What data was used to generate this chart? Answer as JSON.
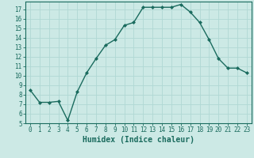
{
  "x": [
    0,
    1,
    2,
    3,
    4,
    5,
    6,
    7,
    8,
    9,
    10,
    11,
    12,
    13,
    14,
    15,
    16,
    17,
    18,
    19,
    20,
    21,
    22,
    23
  ],
  "y": [
    8.5,
    7.2,
    7.2,
    7.3,
    5.3,
    8.3,
    10.3,
    11.8,
    13.2,
    13.8,
    15.3,
    15.6,
    17.2,
    17.2,
    17.2,
    17.2,
    17.5,
    16.7,
    15.6,
    13.8,
    11.8,
    10.8,
    10.8,
    10.3
  ],
  "line_color": "#1a6b5e",
  "marker": "D",
  "marker_size": 2.0,
  "line_width": 1.0,
  "bg_color": "#cce9e5",
  "grid_color": "#b0d8d4",
  "xlabel": "Humidex (Indice chaleur)",
  "xlim": [
    -0.5,
    23.5
  ],
  "ylim": [
    5,
    17.8
  ],
  "yticks": [
    5,
    6,
    7,
    8,
    9,
    10,
    11,
    12,
    13,
    14,
    15,
    16,
    17
  ],
  "xticks": [
    0,
    1,
    2,
    3,
    4,
    5,
    6,
    7,
    8,
    9,
    10,
    11,
    12,
    13,
    14,
    15,
    16,
    17,
    18,
    19,
    20,
    21,
    22,
    23
  ],
  "tick_label_fontsize": 5.5,
  "xlabel_fontsize": 7.0
}
